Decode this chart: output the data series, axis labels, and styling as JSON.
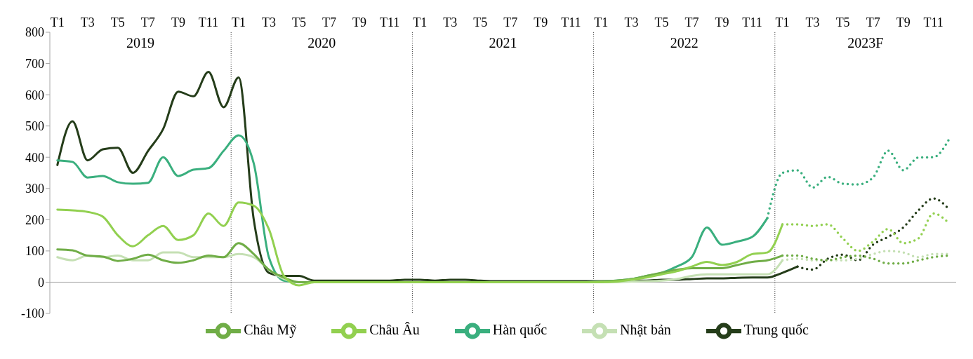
{
  "chart_data": {
    "type": "line",
    "categories": [
      "T1",
      null,
      "T3",
      null,
      "T5",
      null,
      "T7",
      null,
      "T9",
      null,
      "T11",
      null,
      "T1",
      null,
      "T3",
      null,
      "T5",
      null,
      "T7",
      null,
      "T9",
      null,
      "T11",
      null,
      "T1",
      null,
      "T3",
      null,
      "T5",
      null,
      "T7",
      null,
      "T9",
      null,
      "T11",
      null,
      "T1",
      null,
      "T3",
      null,
      "T5",
      null,
      "T7",
      null,
      "T9",
      null,
      "T11",
      null,
      "T1",
      null,
      "T3",
      null,
      "T5",
      null,
      "T7",
      null,
      "T9",
      null,
      "T11",
      null
    ],
    "ylim": [
      -100,
      800
    ],
    "yticks": [
      -100,
      0,
      100,
      200,
      300,
      400,
      500,
      600,
      700,
      800
    ],
    "legend": "bottom",
    "ref_lines": [
      {
        "axis": "y",
        "value": 0,
        "color": "#a6a6a6",
        "line_style": "solid"
      }
    ],
    "annotations": [
      "2019",
      "2020",
      "2021",
      "2022",
      "2023F"
    ],
    "series": [
      {
        "name": "Trung quốc",
        "color": "#253d1a",
        "line_style": "solid",
        "values": [
          375,
          515,
          390,
          425,
          430,
          350,
          420,
          490,
          610,
          595,
          673,
          560,
          655,
          200,
          30,
          20,
          20,
          5,
          5,
          5,
          5,
          5,
          5,
          8,
          8,
          5,
          8,
          8,
          5,
          3,
          3,
          3,
          3,
          3,
          3,
          3,
          3,
          3,
          5,
          5,
          8,
          8,
          10,
          12,
          12,
          14,
          15,
          15,
          30,
          50,
          null,
          null,
          null,
          null,
          null,
          null,
          null,
          null,
          null,
          null
        ]
      },
      {
        "name": "Hàn quốc",
        "color": "#3aaf7e",
        "line_style": "solid",
        "values": [
          390,
          385,
          335,
          340,
          320,
          315,
          318,
          400,
          340,
          360,
          365,
          420,
          470,
          380,
          80,
          5,
          0,
          0,
          0,
          0,
          0,
          0,
          0,
          0,
          0,
          0,
          0,
          0,
          0,
          0,
          0,
          0,
          0,
          0,
          0,
          0,
          2,
          5,
          10,
          20,
          30,
          50,
          80,
          175,
          120,
          130,
          145,
          205,
          null,
          null,
          null,
          null,
          null,
          null,
          null,
          null,
          null,
          null,
          null,
          null
        ]
      },
      {
        "name": "Nhật bản",
        "color": "#c5e0b4",
        "line_style": "solid",
        "values": [
          80,
          70,
          85,
          80,
          85,
          70,
          70,
          95,
          95,
          80,
          80,
          80,
          90,
          80,
          40,
          10,
          0,
          0,
          0,
          0,
          0,
          0,
          0,
          0,
          0,
          0,
          0,
          0,
          0,
          0,
          0,
          0,
          0,
          0,
          0,
          0,
          0,
          0,
          2,
          3,
          5,
          10,
          20,
          25,
          25,
          25,
          25,
          25,
          70,
          null,
          null,
          null,
          null,
          null,
          null,
          null,
          null,
          null,
          null,
          null
        ]
      },
      {
        "name": "Châu Mỹ",
        "color": "#70ad47",
        "line_style": "solid",
        "values": [
          105,
          102,
          85,
          82,
          68,
          75,
          88,
          70,
          62,
          70,
          85,
          80,
          125,
          90,
          40,
          15,
          0,
          0,
          0,
          0,
          0,
          0,
          0,
          0,
          0,
          0,
          0,
          0,
          0,
          0,
          0,
          0,
          0,
          0,
          0,
          0,
          2,
          5,
          10,
          20,
          30,
          40,
          45,
          45,
          45,
          55,
          65,
          70,
          85,
          null,
          null,
          null,
          null,
          null,
          null,
          null,
          null,
          null,
          null,
          null
        ]
      },
      {
        "name": "Châu Âu",
        "color": "#92d050",
        "line_style": "solid",
        "values": [
          232,
          230,
          225,
          210,
          150,
          115,
          150,
          180,
          135,
          150,
          220,
          180,
          255,
          245,
          170,
          20,
          -10,
          0,
          0,
          0,
          0,
          0,
          0,
          0,
          0,
          0,
          0,
          0,
          0,
          0,
          0,
          0,
          0,
          0,
          0,
          0,
          0,
          2,
          8,
          15,
          25,
          35,
          50,
          65,
          55,
          65,
          90,
          95,
          185,
          null,
          null,
          null,
          null,
          null,
          null,
          null,
          null,
          null,
          null,
          null
        ]
      },
      {
        "color": "#253d1a",
        "line_style": "dotted",
        "values": [
          null,
          null,
          null,
          null,
          null,
          null,
          null,
          null,
          null,
          null,
          null,
          null,
          null,
          null,
          null,
          null,
          null,
          null,
          null,
          null,
          null,
          null,
          null,
          null,
          null,
          null,
          null,
          null,
          null,
          null,
          null,
          null,
          null,
          null,
          null,
          null,
          null,
          null,
          null,
          null,
          null,
          null,
          null,
          null,
          null,
          null,
          null,
          null,
          null,
          50,
          40,
          75,
          88,
          70,
          120,
          145,
          175,
          230,
          268,
          235
        ]
      },
      {
        "color": "#3aaf7e",
        "line_style": "dotted",
        "values": [
          null,
          null,
          null,
          null,
          null,
          null,
          null,
          null,
          null,
          null,
          null,
          null,
          null,
          null,
          null,
          null,
          null,
          null,
          null,
          null,
          null,
          null,
          null,
          null,
          null,
          null,
          null,
          null,
          null,
          null,
          null,
          null,
          null,
          null,
          null,
          null,
          null,
          null,
          null,
          null,
          null,
          null,
          null,
          null,
          null,
          null,
          null,
          205,
          350,
          358,
          303,
          337,
          315,
          313,
          335,
          421,
          358,
          399,
          400,
          455
        ]
      },
      {
        "color": "#c5e0b4",
        "line_style": "dotted",
        "values": [
          null,
          null,
          null,
          null,
          null,
          null,
          null,
          null,
          null,
          null,
          null,
          null,
          null,
          null,
          null,
          null,
          null,
          null,
          null,
          null,
          null,
          null,
          null,
          null,
          null,
          null,
          null,
          null,
          null,
          null,
          null,
          null,
          null,
          null,
          null,
          null,
          null,
          null,
          null,
          null,
          null,
          null,
          null,
          null,
          null,
          null,
          null,
          null,
          70,
          75,
          70,
          70,
          70,
          75,
          90,
          100,
          95,
          80,
          90,
          90
        ]
      },
      {
        "color": "#70ad47",
        "line_style": "dotted",
        "values": [
          null,
          null,
          null,
          null,
          null,
          null,
          null,
          null,
          null,
          null,
          null,
          null,
          null,
          null,
          null,
          null,
          null,
          null,
          null,
          null,
          null,
          null,
          null,
          null,
          null,
          null,
          null,
          null,
          null,
          null,
          null,
          null,
          null,
          null,
          null,
          null,
          null,
          null,
          null,
          null,
          null,
          null,
          null,
          null,
          null,
          null,
          null,
          null,
          85,
          85,
          75,
          70,
          80,
          85,
          75,
          60,
          60,
          70,
          80,
          85
        ]
      },
      {
        "color": "#92d050",
        "line_style": "dotted",
        "values": [
          null,
          null,
          null,
          null,
          null,
          null,
          null,
          null,
          null,
          null,
          null,
          null,
          null,
          null,
          null,
          null,
          null,
          null,
          null,
          null,
          null,
          null,
          null,
          null,
          null,
          null,
          null,
          null,
          null,
          null,
          null,
          null,
          null,
          null,
          null,
          null,
          null,
          null,
          null,
          null,
          null,
          null,
          null,
          null,
          null,
          null,
          null,
          null,
          185,
          185,
          180,
          185,
          140,
          100,
          130,
          170,
          125,
          140,
          220,
          190
        ]
      }
    ]
  }
}
